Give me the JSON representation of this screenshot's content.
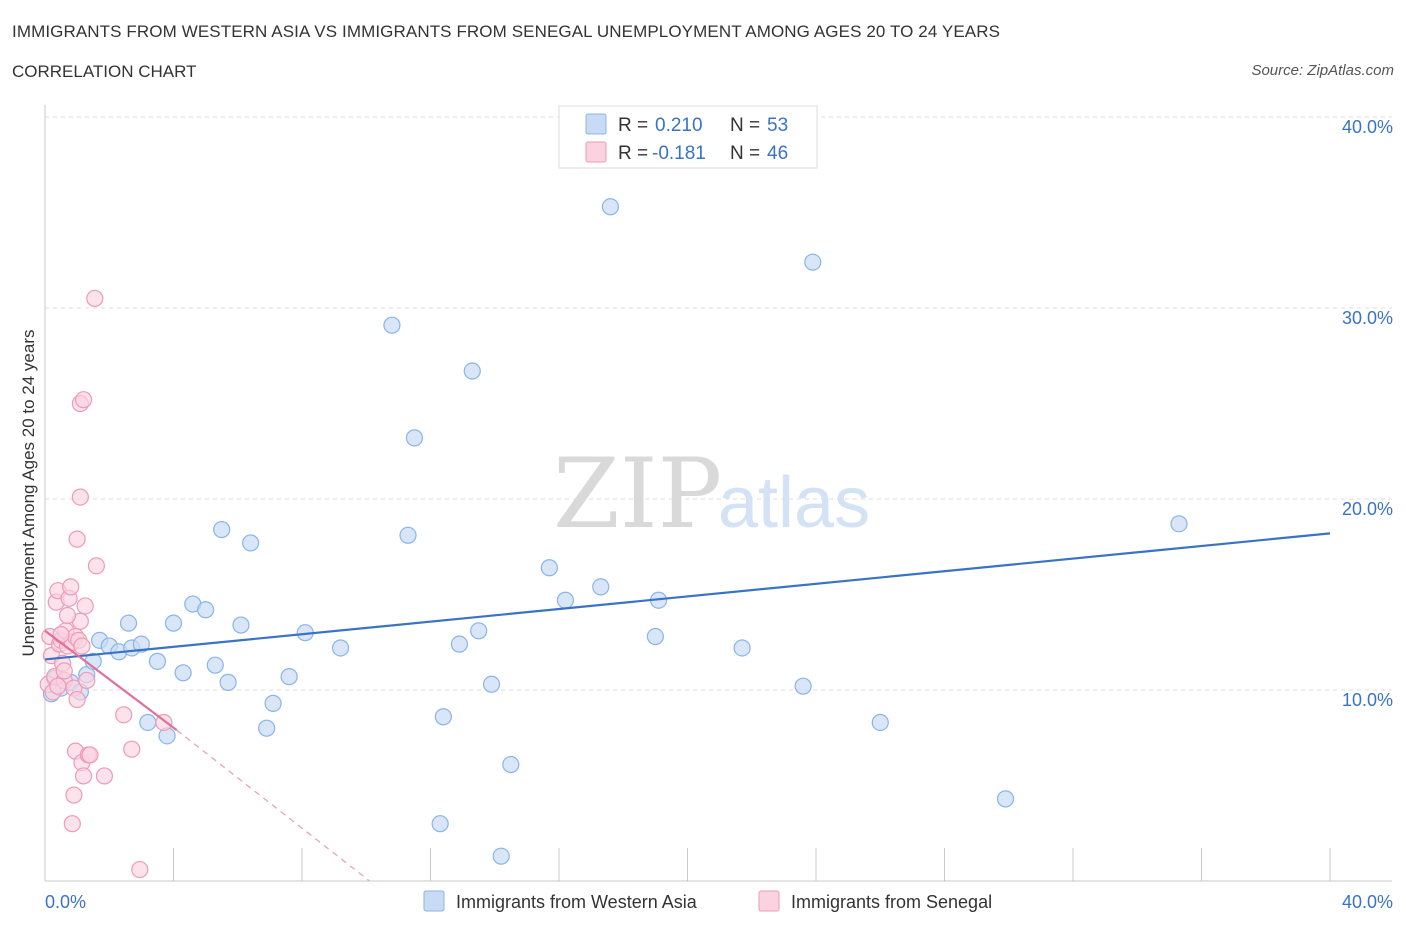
{
  "header": {
    "title": "IMMIGRANTS FROM WESTERN ASIA VS IMMIGRANTS FROM SENEGAL UNEMPLOYMENT AMONG AGES 20 TO 24 YEARS",
    "subtitle": "CORRELATION CHART",
    "source": "Source: ZipAtlas.com"
  },
  "watermark": {
    "zip": "ZIP",
    "atlas": "atlas"
  },
  "legend": {
    "r_label": "R =",
    "n_label": "N =",
    "series": [
      {
        "name": "Immigrants from Western Asia",
        "r": "0.210",
        "n": "53",
        "color": "#8ab4e8",
        "fill": "#c7dbf5"
      },
      {
        "name": "Immigrants from Senegal",
        "r": "-0.181",
        "n": "46",
        "color": "#ef9ab6",
        "fill": "#fbd3e0"
      }
    ]
  },
  "chart_data": {
    "type": "scatter",
    "title": "IMMIGRANTS FROM WESTERN ASIA VS IMMIGRANTS FROM SENEGAL UNEMPLOYMENT AMONG AGES 20 TO 24 YEARS",
    "xlabel": "",
    "ylabel": "Unemployment Among Ages 20 to 24 years",
    "xlim": [
      0,
      40
    ],
    "ylim": [
      0,
      40
    ],
    "x_tick_labels": [
      "0.0%",
      "40.0%"
    ],
    "y_ticks": [
      10,
      20,
      30,
      40
    ],
    "y_tick_labels": [
      "10.0%",
      "20.0%",
      "30.0%",
      "40.0%"
    ],
    "grid": true,
    "series": [
      {
        "name": "Immigrants from Western Asia",
        "color": "#3a73c6",
        "trend": {
          "x": [
            0,
            40
          ],
          "y": [
            11.6,
            18.2
          ]
        },
        "points": [
          [
            0.2,
            9.8
          ],
          [
            0.5,
            10.1
          ],
          [
            0.8,
            10.4
          ],
          [
            1.1,
            9.9
          ],
          [
            1.3,
            10.8
          ],
          [
            1.5,
            11.5
          ],
          [
            1.7,
            12.6
          ],
          [
            2.0,
            12.3
          ],
          [
            2.3,
            12.0
          ],
          [
            2.6,
            13.5
          ],
          [
            2.7,
            12.2
          ],
          [
            3.0,
            12.4
          ],
          [
            3.2,
            8.3
          ],
          [
            3.5,
            11.5
          ],
          [
            3.8,
            7.6
          ],
          [
            4.0,
            13.5
          ],
          [
            4.3,
            10.9
          ],
          [
            4.6,
            14.5
          ],
          [
            5.0,
            14.2
          ],
          [
            5.3,
            11.3
          ],
          [
            5.5,
            18.4
          ],
          [
            5.7,
            10.4
          ],
          [
            6.1,
            13.4
          ],
          [
            6.4,
            17.7
          ],
          [
            6.9,
            8.0
          ],
          [
            7.1,
            9.3
          ],
          [
            7.6,
            10.7
          ],
          [
            8.1,
            13.0
          ],
          [
            9.2,
            12.2
          ],
          [
            10.8,
            29.1
          ],
          [
            11.3,
            18.1
          ],
          [
            11.5,
            23.2
          ],
          [
            12.3,
            3.0
          ],
          [
            12.4,
            8.6
          ],
          [
            12.9,
            12.4
          ],
          [
            13.3,
            26.7
          ],
          [
            13.5,
            13.1
          ],
          [
            13.9,
            10.3
          ],
          [
            14.2,
            1.3
          ],
          [
            14.5,
            6.1
          ],
          [
            15.7,
            16.4
          ],
          [
            16.2,
            14.7
          ],
          [
            17.3,
            15.4
          ],
          [
            17.6,
            35.3
          ],
          [
            19.0,
            12.8
          ],
          [
            19.1,
            14.7
          ],
          [
            21.7,
            12.2
          ],
          [
            23.6,
            10.2
          ],
          [
            23.9,
            32.4
          ],
          [
            26.0,
            8.3
          ],
          [
            29.9,
            4.3
          ],
          [
            35.3,
            18.7
          ],
          [
            0.3,
            10.6
          ]
        ]
      },
      {
        "name": "Immigrants from Senegal",
        "color": "#e0709a",
        "trend": {
          "x": [
            0,
            4.1
          ],
          "y": [
            13.1,
            7.9
          ]
        },
        "trend_dashed": {
          "x": [
            4.1,
            10.1
          ],
          "y": [
            7.9,
            0
          ]
        },
        "points": [
          [
            0.1,
            10.3
          ],
          [
            0.15,
            12.8
          ],
          [
            0.2,
            11.8
          ],
          [
            0.25,
            9.9
          ],
          [
            0.3,
            10.7
          ],
          [
            0.35,
            14.6
          ],
          [
            0.4,
            15.2
          ],
          [
            0.45,
            12.4
          ],
          [
            0.5,
            12.6
          ],
          [
            0.55,
            11.4
          ],
          [
            0.6,
            10.5
          ],
          [
            0.65,
            13.1
          ],
          [
            0.7,
            12.3
          ],
          [
            0.75,
            14.8
          ],
          [
            0.8,
            15.4
          ],
          [
            0.85,
            12.5
          ],
          [
            0.9,
            10.1
          ],
          [
            0.95,
            12.8
          ],
          [
            1.0,
            9.5
          ],
          [
            1.05,
            12.6
          ],
          [
            1.1,
            13.6
          ],
          [
            1.15,
            12.3
          ],
          [
            0.85,
            3.0
          ],
          [
            0.9,
            4.5
          ],
          [
            0.95,
            6.8
          ],
          [
            1.0,
            17.9
          ],
          [
            1.1,
            20.1
          ],
          [
            1.15,
            6.2
          ],
          [
            1.2,
            5.5
          ],
          [
            1.25,
            14.4
          ],
          [
            1.3,
            10.5
          ],
          [
            1.35,
            6.6
          ],
          [
            1.1,
            25.0
          ],
          [
            1.2,
            25.2
          ],
          [
            1.4,
            6.6
          ],
          [
            1.55,
            30.5
          ],
          [
            1.6,
            16.5
          ],
          [
            1.85,
            5.5
          ],
          [
            2.45,
            8.7
          ],
          [
            2.7,
            6.9
          ],
          [
            2.95,
            0.6
          ],
          [
            3.7,
            8.3
          ],
          [
            0.5,
            12.9
          ],
          [
            0.6,
            11.0
          ],
          [
            0.7,
            13.9
          ],
          [
            0.4,
            10.2
          ]
        ]
      }
    ]
  }
}
